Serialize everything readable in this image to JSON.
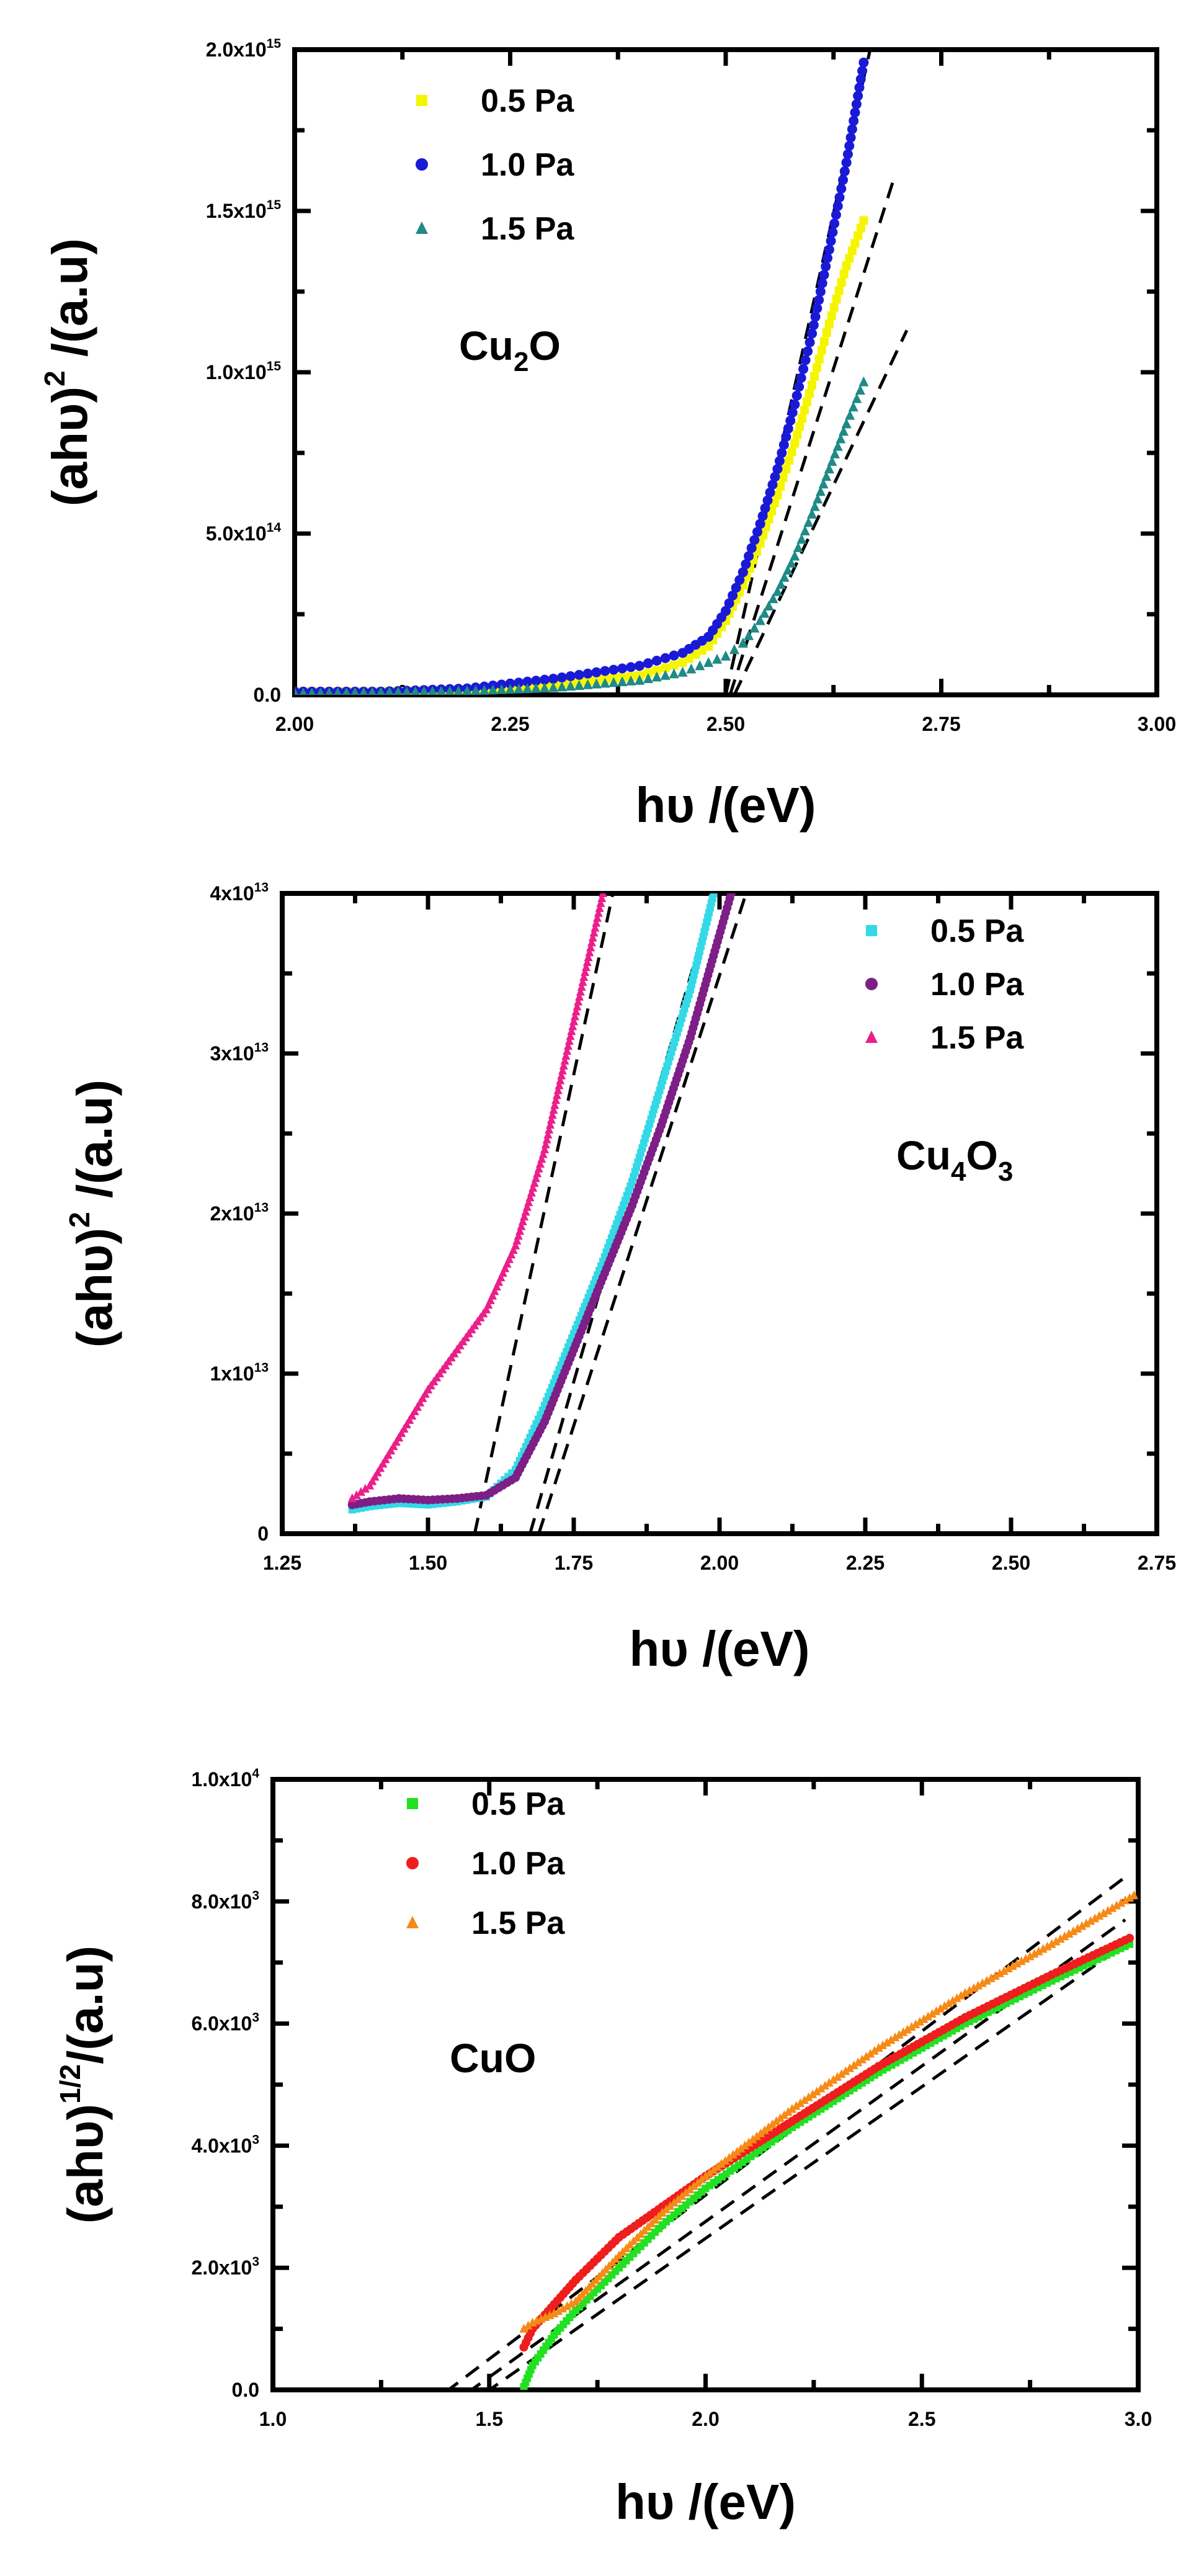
{
  "chart_data": [
    {
      "type": "scatter",
      "label": "Cu2O",
      "label_main": "Cu",
      "label_sub": "2",
      "label_tail": "O",
      "xlabel": "hυ /(eV)",
      "ylabel": "(ahυ)",
      "ylabel_exp": "2",
      "ylabel_tail": " /(a.u)",
      "xlim": [
        2.0,
        3.0
      ],
      "ylim": [
        0,
        2000000000000000.0
      ],
      "xticks": [
        2.0,
        2.25,
        2.5,
        2.75,
        3.0
      ],
      "xtick_labels": [
        "2.00",
        "2.25",
        "2.50",
        "2.75",
        "3.00"
      ],
      "yticks": [
        {
          "value": 0,
          "mant": "0.0",
          "exp": ""
        },
        {
          "value": 500000000000000.0,
          "mant": "5.0x10",
          "exp": "14"
        },
        {
          "value": 1000000000000000.0,
          "mant": "1.0x10",
          "exp": "15"
        },
        {
          "value": 1500000000000000.0,
          "mant": "1.5x10",
          "exp": "15"
        },
        {
          "value": 2000000000000000.0,
          "mant": "2.0x10",
          "exp": "15"
        }
      ],
      "legend_position": "top-left",
      "series": [
        {
          "name": "0.5 Pa",
          "color": "#f5f500",
          "marker": "square",
          "x": [
            2.0,
            2.1,
            2.2,
            2.3,
            2.4,
            2.45,
            2.48,
            2.5,
            2.52,
            2.54,
            2.56,
            2.58,
            2.6,
            2.62,
            2.64,
            2.66
          ],
          "y": [
            10000000000000.0,
            10000000000000.0,
            15000000000000.0,
            30000000000000.0,
            60000000000000.0,
            100000000000000.0,
            150000000000000.0,
            230000000000000.0,
            340000000000000.0,
            470000000000000.0,
            620000000000000.0,
            780000000000000.0,
            960000000000000.0,
            1150000000000000.0,
            1330000000000000.0,
            1470000000000000.0
          ]
        },
        {
          "name": "1.0 Pa",
          "color": "#1a1ad6",
          "marker": "circle",
          "x": [
            2.0,
            2.1,
            2.2,
            2.3,
            2.35,
            2.4,
            2.45,
            2.48,
            2.5,
            2.52,
            2.54,
            2.56,
            2.58,
            2.6,
            2.62,
            2.64,
            2.66
          ],
          "y": [
            10000000000000.0,
            10000000000000.0,
            20000000000000.0,
            50000000000000.0,
            70000000000000.0,
            90000000000000.0,
            130000000000000.0,
            180000000000000.0,
            260000000000000.0,
            380000000000000.0,
            530000000000000.0,
            700000000000000.0,
            900000000000000.0,
            1120000000000000.0,
            1380000000000000.0,
            1650000000000000.0,
            1960000000000000.0
          ]
        },
        {
          "name": "1.5 Pa",
          "color": "#1f8a86",
          "marker": "triangle",
          "x": [
            2.0,
            2.1,
            2.2,
            2.3,
            2.4,
            2.45,
            2.5,
            2.52,
            2.54,
            2.56,
            2.58,
            2.6,
            2.62,
            2.64,
            2.66
          ],
          "y": [
            5000000000000.0,
            8000000000000.0,
            12000000000000.0,
            22000000000000.0,
            45000000000000.0,
            70000000000000.0,
            120000000000000.0,
            160000000000000.0,
            230000000000000.0,
            320000000000000.0,
            430000000000000.0,
            560000000000000.0,
            700000000000000.0,
            840000000000000.0,
            970000000000000.0
          ]
        }
      ],
      "fit_lines": [
        {
          "x": [
            2.5,
            2.67
          ],
          "y": [
            0,
            2030000000000000.0
          ]
        },
        {
          "x": [
            2.505,
            2.695
          ],
          "y": [
            0,
            1600000000000000.0
          ]
        },
        {
          "x": [
            2.51,
            2.71
          ],
          "y": [
            0,
            1130000000000000.0
          ]
        }
      ]
    },
    {
      "type": "scatter",
      "label": "Cu4O3",
      "label_main": "Cu",
      "label_sub": "4",
      "label_tail": "O",
      "label_sub2": "3",
      "xlabel": "hυ /(eV)",
      "ylabel": "(ahυ)",
      "ylabel_exp": "2",
      "ylabel_tail": " /(a.u)",
      "xlim": [
        1.25,
        2.75
      ],
      "ylim": [
        0,
        40000000000000.0
      ],
      "xticks": [
        1.25,
        1.5,
        1.75,
        2.0,
        2.25,
        2.5,
        2.75
      ],
      "xtick_labels": [
        "1.25",
        "1.50",
        "1.75",
        "2.00",
        "2.25",
        "2.50",
        "2.75"
      ],
      "yticks": [
        {
          "value": 0,
          "mant": "0",
          "exp": ""
        },
        {
          "value": 10000000000000.0,
          "mant": "1x10",
          "exp": "13"
        },
        {
          "value": 20000000000000.0,
          "mant": "2x10",
          "exp": "13"
        },
        {
          "value": 30000000000000.0,
          "mant": "3x10",
          "exp": "13"
        },
        {
          "value": 40000000000000.0,
          "mant": "4x10",
          "exp": "13"
        }
      ],
      "legend_position": "top-right",
      "series": [
        {
          "name": "0.5 Pa",
          "color": "#33d9e6",
          "marker": "square",
          "x": [
            1.37,
            1.4,
            1.45,
            1.5,
            1.55,
            1.6,
            1.65,
            1.7,
            1.75,
            1.8,
            1.85,
            1.9,
            1.95,
            1.99
          ],
          "y": [
            1500000000000.0,
            1700000000000.0,
            1900000000000.0,
            1800000000000.0,
            2000000000000.0,
            2300000000000.0,
            4000000000000.0,
            8000000000000.0,
            12500000000000.0,
            17000000000000.0,
            22000000000000.0,
            28000000000000.0,
            34000000000000.0,
            40000000000000.0
          ]
        },
        {
          "name": "1.0 Pa",
          "color": "#7d1f86",
          "marker": "circle",
          "x": [
            1.37,
            1.4,
            1.45,
            1.5,
            1.55,
            1.6,
            1.65,
            1.7,
            1.75,
            1.8,
            1.85,
            1.9,
            1.95,
            2.02
          ],
          "y": [
            1800000000000.0,
            2000000000000.0,
            2200000000000.0,
            2100000000000.0,
            2200000000000.0,
            2400000000000.0,
            3500000000000.0,
            7000000000000.0,
            11500000000000.0,
            16000000000000.0,
            20500000000000.0,
            25500000000000.0,
            31000000000000.0,
            40000000000000.0
          ]
        },
        {
          "name": "1.5 Pa",
          "color": "#ea1f8a",
          "marker": "triangle",
          "x": [
            1.37,
            1.4,
            1.45,
            1.5,
            1.55,
            1.6,
            1.65,
            1.7,
            1.75,
            1.8
          ],
          "y": [
            2200000000000.0,
            3000000000000.0,
            6000000000000.0,
            9000000000000.0,
            11500000000000.0,
            14000000000000.0,
            18000000000000.0,
            24000000000000.0,
            32000000000000.0,
            40000000000000.0
          ]
        }
      ],
      "fit_lines": [
        {
          "x": [
            1.58,
            1.82
          ],
          "y": [
            0,
            40500000000000.0
          ]
        },
        {
          "x": [
            1.675,
            1.995
          ],
          "y": [
            0,
            40500000000000.0
          ]
        },
        {
          "x": [
            1.69,
            2.05
          ],
          "y": [
            0,
            40500000000000.0
          ]
        }
      ]
    },
    {
      "type": "scatter",
      "label": "CuO",
      "label_main": "CuO",
      "xlabel": "hυ /(eV)",
      "ylabel": "(ahυ)",
      "ylabel_exp": "1/2",
      "ylabel_tail": "/(a.u)",
      "xlim": [
        1.0,
        3.0
      ],
      "ylim": [
        0,
        10000.0
      ],
      "xticks": [
        1.0,
        1.5,
        2.0,
        2.5,
        3.0
      ],
      "xtick_labels": [
        "1.0",
        "1.5",
        "2.0",
        "2.5",
        "3.0"
      ],
      "yticks": [
        {
          "value": 0,
          "mant": "0.0",
          "exp": ""
        },
        {
          "value": 2000,
          "mant": "2.0x10",
          "exp": "3"
        },
        {
          "value": 4000,
          "mant": "4.0x10",
          "exp": "3"
        },
        {
          "value": 6000,
          "mant": "6.0x10",
          "exp": "3"
        },
        {
          "value": 8000,
          "mant": "8.0x10",
          "exp": "3"
        },
        {
          "value": 10000,
          "mant": "1.0x10",
          "exp": "4"
        }
      ],
      "legend_position": "top-left",
      "series": [
        {
          "name": "0.5 Pa",
          "color": "#22e022",
          "marker": "square",
          "x": [
            1.58,
            1.6,
            1.65,
            1.7,
            1.8,
            1.9,
            2.0,
            2.2,
            2.4,
            2.6,
            2.8,
            2.98
          ],
          "y": [
            50,
            400,
            900,
            1300,
            2000,
            2700,
            3300,
            4300,
            5200,
            6000,
            6700,
            7300
          ]
        },
        {
          "name": "1.0 Pa",
          "color": "#ee1e1e",
          "marker": "circle",
          "x": [
            1.58,
            1.6,
            1.65,
            1.7,
            1.8,
            1.9,
            2.0,
            2.2,
            2.4,
            2.6,
            2.8,
            2.98
          ],
          "y": [
            700,
            1000,
            1400,
            1800,
            2500,
            3000,
            3500,
            4400,
            5300,
            6100,
            6800,
            7400
          ]
        },
        {
          "name": "1.5 Pa",
          "color": "#f58a16",
          "marker": "triangle",
          "x": [
            1.58,
            1.6,
            1.65,
            1.7,
            1.8,
            1.9,
            2.0,
            2.2,
            2.4,
            2.6,
            2.8,
            2.99
          ],
          "y": [
            1000,
            1100,
            1250,
            1450,
            2200,
            2900,
            3500,
            4600,
            5600,
            6500,
            7300,
            8100
          ]
        }
      ],
      "fit_lines": [
        {
          "x": [
            1.35,
            2.97
          ],
          "y": [
            -300,
            8400
          ]
        },
        {
          "x": [
            1.4,
            2.97
          ],
          "y": [
            -300,
            7700
          ]
        },
        {
          "x": [
            1.44,
            2.97
          ],
          "y": [
            -300,
            7300
          ]
        }
      ]
    }
  ]
}
